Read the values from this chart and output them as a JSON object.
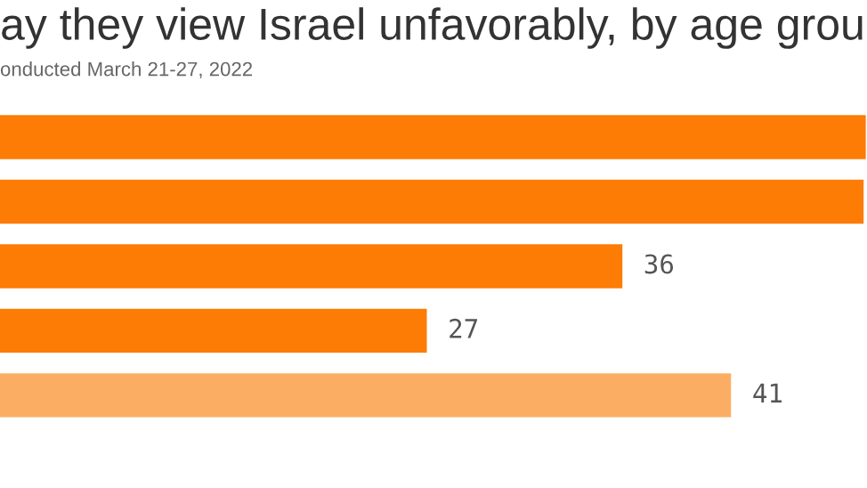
{
  "chart_data": {
    "type": "bar",
    "orientation": "horizontal",
    "title": "ay they view Israel unfavorably, by age grou",
    "subtitle": "onducted March 21-27, 2022",
    "categories": [
      null,
      null,
      null,
      null,
      null
    ],
    "values": [
      47.2,
      47.1,
      36,
      27,
      41
    ],
    "colors": [
      "#fc7c05",
      "#fc7c05",
      "#fc7c05",
      "#fc7c05",
      "#fbae63"
    ],
    "value_labels": [
      null,
      null,
      "36",
      "27",
      "41"
    ],
    "grid": false,
    "legend": false
  }
}
